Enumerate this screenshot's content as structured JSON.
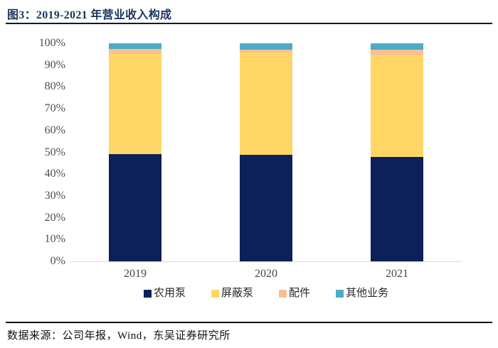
{
  "page": {
    "title": "图3：2019-2021 年营业收入构成",
    "source": "数据来源：公司年报，Wind，东吴证券研究所"
  },
  "colors": {
    "title_text": "#1A355E",
    "top_rule": "#15152E",
    "bottom_rule": "#111111",
    "axis_line": "#D9D9D9",
    "tick_label": "#4D4D4D",
    "x_label": "#454545",
    "legend_text": "#262626",
    "source_text": "#111111"
  },
  "chart_data": {
    "type": "bar",
    "stacked": true,
    "unit": "%",
    "title": "2019-2021 年营业收入构成",
    "categories": [
      "2019",
      "2020",
      "2021"
    ],
    "series": [
      {
        "name": "农用泵",
        "key": "agricultural-pumps",
        "color": "#0C2159",
        "values": [
          49.1,
          48.8,
          48.0
        ]
      },
      {
        "name": "屏蔽泵",
        "key": "canned-pumps",
        "color": "#FFD666",
        "values": [
          46.1,
          46.9,
          46.4
        ]
      },
      {
        "name": "配件",
        "key": "accessories",
        "color": "#FAC090",
        "values": [
          2.2,
          1.5,
          2.6
        ]
      },
      {
        "name": "其他业务",
        "key": "other-business",
        "color": "#4BACC6",
        "values": [
          2.6,
          2.8,
          3.0
        ]
      }
    ],
    "y_ticks": [
      "100%",
      "90%",
      "80%",
      "70%",
      "60%",
      "50%",
      "40%",
      "30%",
      "20%",
      "10%",
      "0%"
    ],
    "ylim": [
      0,
      100
    ],
    "grid": false,
    "legend_position": "bottom"
  }
}
